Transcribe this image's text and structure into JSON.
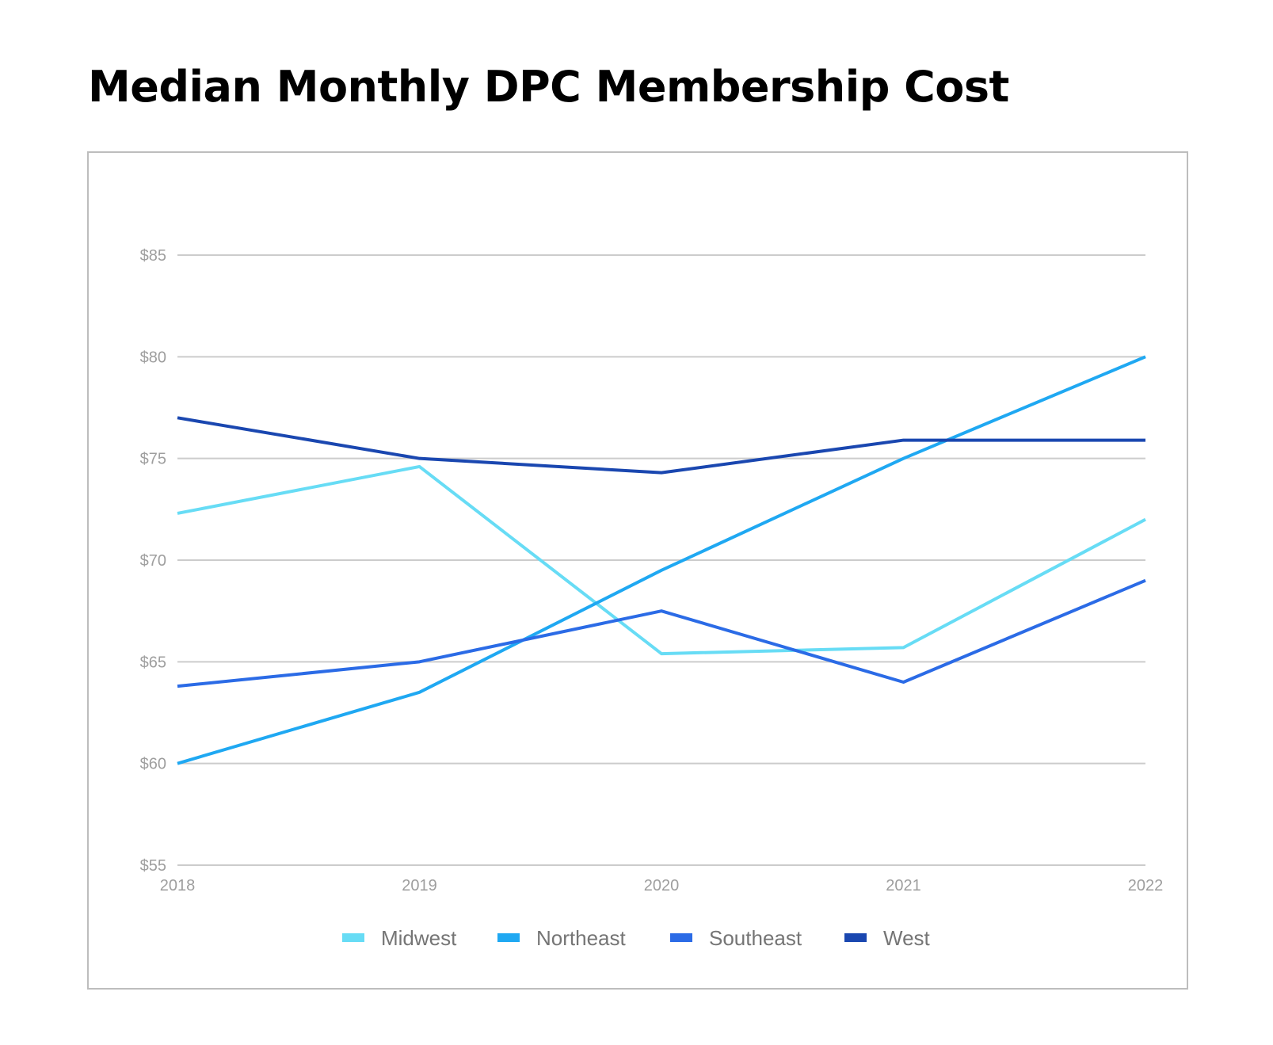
{
  "chart_data": {
    "type": "line",
    "title": "Median Monthly DPC Membership Cost",
    "xlabel": "",
    "ylabel": "",
    "categories": [
      "2018",
      "2019",
      "2020",
      "2021",
      "2022"
    ],
    "ylim": [
      55,
      85
    ],
    "yticks": [
      55,
      60,
      65,
      70,
      75,
      80,
      85
    ],
    "ytick_labels": [
      "$55",
      "$60",
      "$65",
      "$70",
      "$75",
      "$80",
      "$85"
    ],
    "grid": true,
    "legend_position": "bottom",
    "series": [
      {
        "name": "Midwest",
        "color": "#67dcf5",
        "values": [
          72.3,
          74.6,
          65.4,
          65.7,
          72.0
        ]
      },
      {
        "name": "Northeast",
        "color": "#1fa8f2",
        "values": [
          60.0,
          63.5,
          69.5,
          75.0,
          80.0
        ]
      },
      {
        "name": "Southeast",
        "color": "#2b6be6",
        "values": [
          63.8,
          65.0,
          67.5,
          64.0,
          69.0
        ]
      },
      {
        "name": "West",
        "color": "#1a47b0",
        "values": [
          77.0,
          75.0,
          74.3,
          75.9,
          75.9
        ]
      }
    ]
  }
}
